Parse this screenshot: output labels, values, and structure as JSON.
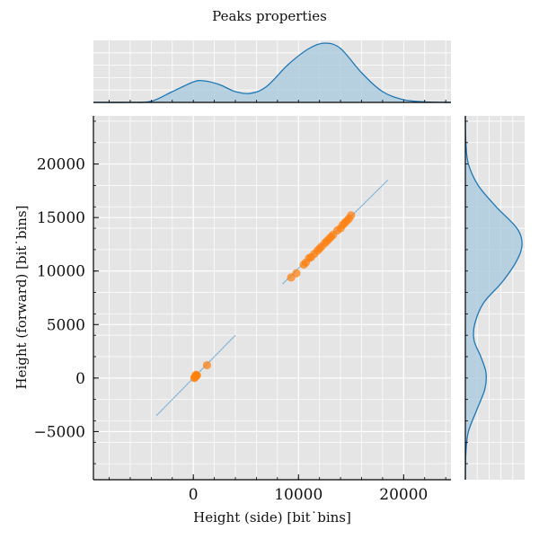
{
  "chart_data": [
    {
      "type": "scatter",
      "panel": "joint",
      "title": "Peaks properties",
      "xlabel": "Height (side) [bit˙bins]",
      "ylabel": "Height (forward) [bit˙bins]",
      "xlim": [
        -9500,
        24500
      ],
      "ylim": [
        -9500,
        24500
      ],
      "xticks": [
        0,
        10000,
        20000
      ],
      "xtick_labels": [
        "0",
        "10000",
        "20000"
      ],
      "yticks": [
        -5000,
        0,
        5000,
        10000,
        15000,
        20000
      ],
      "ytick_labels": [
        "−5000",
        "0",
        "5000",
        "10000",
        "15000",
        "20000"
      ],
      "grid": true,
      "background": "#e5e5e5",
      "series": [
        {
          "color": "#ff7f0e",
          "points": [
            [
              100,
              0
            ],
            [
              200,
              120
            ],
            [
              280,
              220
            ],
            [
              350,
              260
            ],
            [
              250,
              300
            ],
            [
              150,
              100
            ],
            [
              1300,
              1200
            ],
            [
              9300,
              9400
            ],
            [
              9800,
              9800
            ],
            [
              10500,
              10600
            ],
            [
              10700,
              10800
            ],
            [
              11000,
              11200
            ],
            [
              11200,
              11300
            ],
            [
              11500,
              11600
            ],
            [
              11800,
              11900
            ],
            [
              12000,
              12100
            ],
            [
              12200,
              12300
            ],
            [
              12500,
              12600
            ],
            [
              12700,
              12800
            ],
            [
              12900,
              13000
            ],
            [
              13100,
              13200
            ],
            [
              13300,
              13400
            ],
            [
              13700,
              13800
            ],
            [
              14000,
              14000
            ],
            [
              14200,
              14300
            ],
            [
              14400,
              14500
            ],
            [
              14600,
              14700
            ],
            [
              14800,
              14900
            ],
            [
              15000,
              15200
            ]
          ]
        },
        {
          "color": "#1f77b4",
          "style": "faint density streak",
          "segments": [
            [
              [
                -3500,
                -3500
              ],
              [
                4000,
                4000
              ]
            ],
            [
              [
                8500,
                8800
              ],
              [
                18500,
                18500
              ]
            ]
          ]
        }
      ]
    },
    {
      "type": "area",
      "panel": "marginal-top",
      "description_axis": "x",
      "color": "#1f77b4",
      "fill": "#a6c8de",
      "x": [
        -9500,
        -6000,
        -4000,
        -2000,
        0,
        1000,
        2500,
        4000,
        5500,
        7000,
        9000,
        11000,
        12500,
        14000,
        16000,
        18000,
        20000,
        22000,
        24500
      ],
      "density": [
        0.0,
        0.0,
        0.02,
        0.2,
        0.38,
        0.4,
        0.33,
        0.2,
        0.17,
        0.3,
        0.7,
        1.0,
        1.1,
        1.0,
        0.55,
        0.2,
        0.05,
        0.01,
        0.0
      ]
    },
    {
      "type": "area",
      "panel": "marginal-right",
      "description_axis": "y",
      "color": "#1f77b4",
      "fill": "#a6c8de",
      "y": [
        -9500,
        -7000,
        -5000,
        -3000,
        -1000,
        500,
        2000,
        3500,
        5000,
        7000,
        9000,
        11000,
        12500,
        14000,
        16000,
        18000,
        20000,
        22000,
        24500
      ],
      "density": [
        0.0,
        0.01,
        0.06,
        0.22,
        0.38,
        0.4,
        0.3,
        0.17,
        0.18,
        0.35,
        0.72,
        1.0,
        1.1,
        1.0,
        0.6,
        0.25,
        0.06,
        0.01,
        0.0
      ]
    }
  ]
}
